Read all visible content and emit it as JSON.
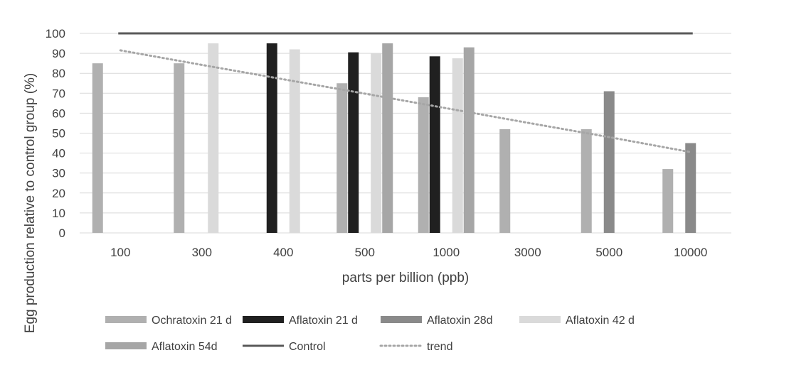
{
  "chart_data": {
    "type": "bar",
    "xlabel": "parts per billion (ppb)",
    "ylabel": "Egg production relative to control group (%)",
    "ylim": [
      0,
      100
    ],
    "yticks": [
      0,
      10,
      20,
      30,
      40,
      50,
      60,
      70,
      80,
      90,
      100
    ],
    "grid": true,
    "legend_position": "bottom",
    "categories": [
      "100",
      "300",
      "400",
      "500",
      "1000",
      "3000",
      "5000",
      "10000"
    ],
    "series": [
      {
        "name": "Ochratoxin 21 d",
        "color": "#b0b0b0",
        "values": [
          85,
          85,
          null,
          75,
          68,
          52,
          52,
          32
        ]
      },
      {
        "name": "Aflatoxin 21 d",
        "color": "#202020",
        "values": [
          null,
          null,
          95,
          90.5,
          88.5,
          null,
          null,
          null
        ]
      },
      {
        "name": "Aflatoxin 28d",
        "color": "#8a8a8a",
        "values": [
          null,
          null,
          null,
          null,
          null,
          null,
          71,
          45
        ]
      },
      {
        "name": "Aflatoxin 42 d",
        "color": "#dadada",
        "values": [
          null,
          95,
          92,
          90,
          87.5,
          null,
          null,
          null
        ]
      },
      {
        "name": "Aflatoxin 54d",
        "color": "#a6a6a6",
        "values": [
          null,
          null,
          null,
          95,
          93,
          null,
          null,
          null
        ]
      }
    ],
    "lines": [
      {
        "name": "Control",
        "color": "#595959",
        "style": "solid",
        "values": [
          100,
          100,
          100,
          100,
          100,
          100,
          100,
          100
        ]
      },
      {
        "name": "trend",
        "color": "#a6a6a6",
        "style": "dotted",
        "values": [
          91.5,
          84.2,
          77.0,
          69.8,
          62.5,
          55.2,
          48.0,
          40.5
        ]
      }
    ]
  }
}
